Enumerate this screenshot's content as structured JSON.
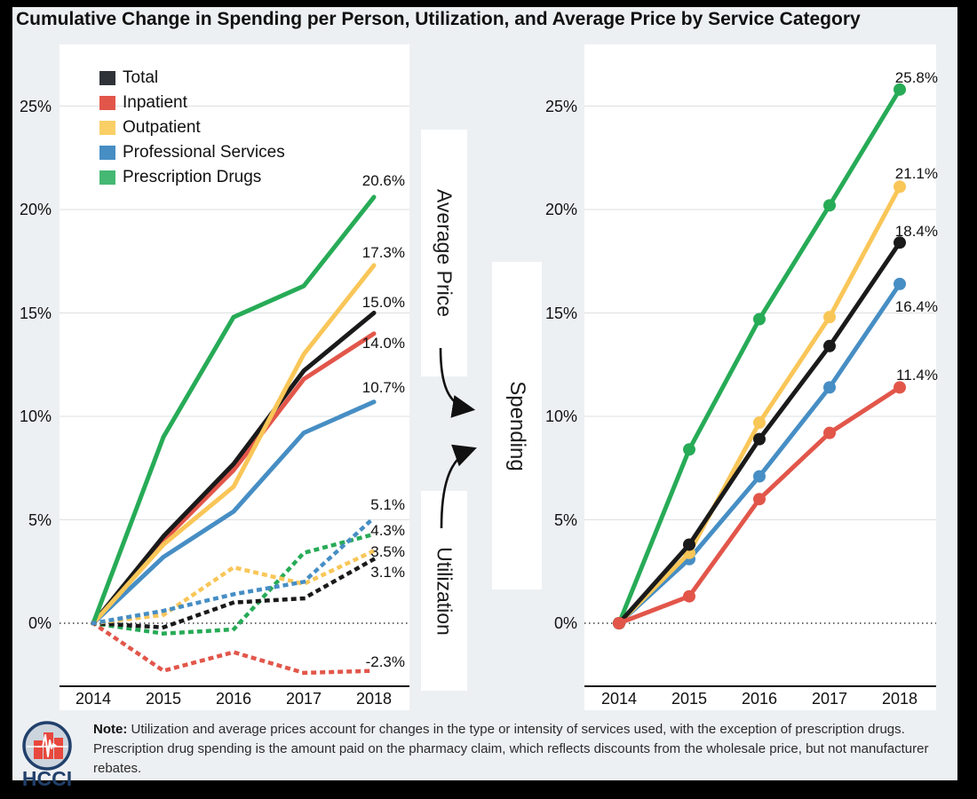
{
  "title": "Cumulative Change in Spending per Person, Utilization, and Average Price by Service Category",
  "colors": {
    "total": "#1a1a1a",
    "inpatient": "#e2564a",
    "outpatient": "#f9c658",
    "professional_services": "#468ec4",
    "prescription_drugs": "#27ab57",
    "background": "#edf0f3",
    "gridline": "#dcdfe2",
    "navy": "#21406b",
    "logo_red": "#e8483d"
  },
  "legend": {
    "items": [
      {
        "label": "Total",
        "color": "#2f3338"
      },
      {
        "label": "Inpatient",
        "color": "#e2564a"
      },
      {
        "label": "Outpatient",
        "color": "#f9cf66"
      },
      {
        "label": "Professional Services",
        "color": "#468ec4"
      },
      {
        "label": "Prescription Drugs",
        "color": "#45b873"
      }
    ]
  },
  "middle": {
    "average_price": "Average Price",
    "spending": "Spending",
    "utilization": "Utilization"
  },
  "chart_data": [
    {
      "panel": "average_price_and_utilization",
      "type": "line",
      "categories": [
        "2014",
        "2015",
        "2016",
        "2017",
        "2018"
      ],
      "y_ticks": [
        "0%",
        "5%",
        "10%",
        "15%",
        "20%",
        "25%"
      ],
      "ylim": [
        -3.1,
        27.5
      ],
      "grid": true,
      "zero_line": "dotted",
      "annotations": [
        "Average Price (solid lines)",
        "Utilization (dotted lines)"
      ],
      "series": [
        {
          "name": "Total — Average Price",
          "style": "solid",
          "color": "#1a1a1a",
          "values": [
            0,
            4.2,
            7.7,
            12.2,
            15.0
          ],
          "end_label": "15.0%"
        },
        {
          "name": "Inpatient — Average Price",
          "style": "solid",
          "color": "#e2564a",
          "values": [
            0,
            4.0,
            7.4,
            11.8,
            14.0
          ],
          "end_label": "14.0%"
        },
        {
          "name": "Outpatient — Average Price",
          "style": "solid",
          "color": "#f9c658",
          "values": [
            0,
            3.8,
            6.6,
            13.0,
            17.3
          ],
          "end_label": "17.3%"
        },
        {
          "name": "Professional Services — Average Price",
          "style": "solid",
          "color": "#468ec4",
          "values": [
            0,
            3.2,
            5.4,
            9.2,
            10.7
          ],
          "end_label": "10.7%"
        },
        {
          "name": "Prescription Drugs — Average Price",
          "style": "solid",
          "color": "#27ab57",
          "values": [
            0,
            9.0,
            14.8,
            16.3,
            20.6
          ],
          "end_label": "20.6%"
        },
        {
          "name": "Total — Utilization",
          "style": "dotted",
          "color": "#1a1a1a",
          "values": [
            0,
            -0.2,
            1.0,
            1.2,
            3.1
          ],
          "end_label": "3.1%"
        },
        {
          "name": "Inpatient — Utilization",
          "style": "dotted",
          "color": "#e2564a",
          "values": [
            0,
            -2.3,
            -1.4,
            -2.4,
            -2.3
          ],
          "end_label": "-2.3%"
        },
        {
          "name": "Outpatient — Utilization",
          "style": "dotted",
          "color": "#f9c658",
          "values": [
            0,
            0.4,
            2.7,
            1.9,
            3.5
          ],
          "end_label": "3.5%"
        },
        {
          "name": "Professional Services — Utilization",
          "style": "dotted",
          "color": "#468ec4",
          "values": [
            0,
            0.6,
            1.4,
            2.0,
            5.1
          ],
          "end_label": "5.1%"
        },
        {
          "name": "Prescription Drugs — Utilization",
          "style": "dotted",
          "color": "#27ab57",
          "values": [
            0,
            -0.5,
            -0.3,
            3.4,
            4.3
          ],
          "end_label": "4.3%"
        }
      ]
    },
    {
      "panel": "spending",
      "type": "line",
      "categories": [
        "2014",
        "2015",
        "2016",
        "2017",
        "2018"
      ],
      "y_ticks": [
        "0%",
        "5%",
        "10%",
        "15%",
        "20%",
        "25%"
      ],
      "ylim": [
        -3.1,
        27.5
      ],
      "grid": true,
      "zero_line": "dotted",
      "markers": true,
      "series": [
        {
          "name": "Total",
          "style": "solid",
          "color": "#1a1a1a",
          "values": [
            0,
            3.8,
            8.9,
            13.4,
            18.4
          ],
          "end_label": "18.4%"
        },
        {
          "name": "Inpatient",
          "style": "solid",
          "color": "#e2564a",
          "values": [
            0,
            1.3,
            6.0,
            9.2,
            11.4
          ],
          "end_label": "11.4%"
        },
        {
          "name": "Outpatient",
          "style": "solid",
          "color": "#f9c658",
          "values": [
            0,
            3.4,
            9.7,
            14.8,
            21.1
          ],
          "end_label": "21.1%"
        },
        {
          "name": "Professional Services",
          "style": "solid",
          "color": "#468ec4",
          "values": [
            0,
            3.1,
            7.1,
            11.4,
            16.4
          ],
          "end_label": "16.4%"
        },
        {
          "name": "Prescription Drugs",
          "style": "solid",
          "color": "#27ab57",
          "values": [
            0,
            8.4,
            14.7,
            20.2,
            25.8
          ],
          "end_label": "25.8%"
        }
      ]
    }
  ],
  "note": {
    "label": "Note:",
    "text": " Utilization and average prices account for changes in the type or intensity of services used, with the exception of prescription drugs. Prescription drug spending is the amount paid on the pharmacy claim, which reflects discounts from the wholesale price, but not manufacturer rebates."
  },
  "logo": {
    "text": "HCCI"
  }
}
